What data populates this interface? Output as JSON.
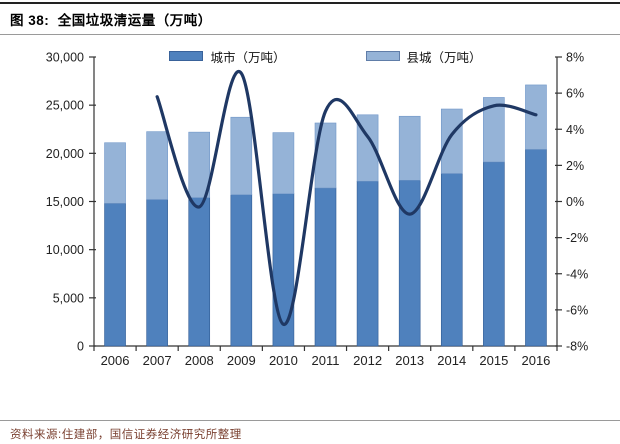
{
  "header": {
    "title": "图 38:  全国垃圾清运量（万吨）"
  },
  "footer": {
    "source": "资料来源:住建部，国信证券经济研究所整理"
  },
  "chart_data": {
    "type": "bar",
    "subtype": "stacked-bars-with-smoothed-line-on-secondary-axis",
    "title": "全国垃圾清运量（万吨）",
    "categories": [
      "2006",
      "2007",
      "2008",
      "2009",
      "2010",
      "2011",
      "2012",
      "2013",
      "2014",
      "2015",
      "2016"
    ],
    "series": [
      {
        "name": "城市（万吨）",
        "type": "bar",
        "stack": "total",
        "color": "#4f81bd",
        "values": [
          14800,
          15200,
          15400,
          15700,
          15800,
          16400,
          17100,
          17200,
          17900,
          19100,
          20400
        ]
      },
      {
        "name": "县城（万吨）",
        "type": "bar",
        "stack": "total",
        "color": "#95b3d7",
        "values": [
          6300,
          7050,
          6800,
          8050,
          6350,
          6750,
          6900,
          6650,
          6700,
          6700,
          6700
        ]
      }
    ],
    "line": {
      "axis": "right",
      "color": "#1f3864",
      "smooth": true,
      "x": [
        "2007",
        "2008",
        "2009",
        "2010",
        "2011",
        "2012",
        "2013",
        "2014",
        "2015",
        "2016"
      ],
      "values_percent": [
        5.8,
        -0.3,
        7.1,
        -6.8,
        5.0,
        3.6,
        -0.7,
        3.7,
        5.3,
        4.8
      ]
    },
    "left_axis": {
      "min": 0,
      "max": 30000,
      "step": 5000,
      "tick_labels": [
        "30,000",
        "25,000",
        "20,000",
        "15,000",
        "10,000",
        "5,000",
        "0"
      ]
    },
    "right_axis": {
      "min": -8,
      "max": 8,
      "step": 2,
      "tick_labels": [
        "8%",
        "6%",
        "4%",
        "2%",
        "0%",
        "-2%",
        "-4%",
        "-6%",
        "-8%"
      ]
    },
    "legend": {
      "position": "top-inside",
      "entries": [
        "城市（万吨）",
        "县城（万吨）"
      ]
    },
    "grid": false,
    "colors": {
      "axis": "#333333",
      "tick_text": "#222222"
    }
  }
}
